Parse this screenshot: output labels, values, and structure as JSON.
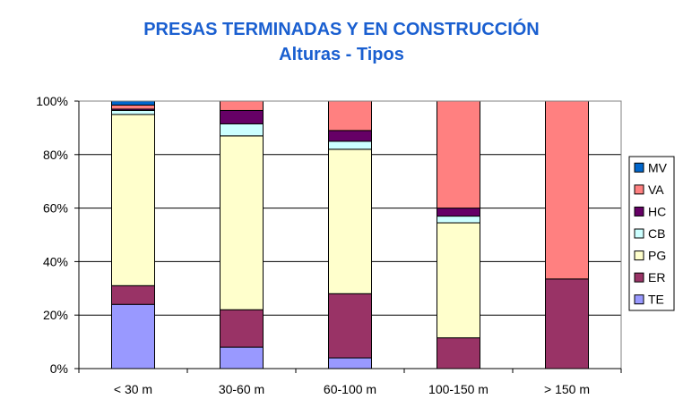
{
  "chart_data": {
    "type": "bar",
    "stacked": true,
    "percent": true,
    "title": "PRESAS TERMINADAS Y EN CONSTRUCCIÓN",
    "subtitle": "Alturas - Tipos",
    "categories": [
      "< 30 m",
      "30-60 m",
      "60-100 m",
      "100-150 m",
      "> 150 m"
    ],
    "y_ticks": [
      "0%",
      "20%",
      "40%",
      "60%",
      "80%",
      "100%"
    ],
    "ylim": [
      0,
      100
    ],
    "legend_position": "right",
    "series": [
      {
        "name": "TE",
        "color": "#9999ff",
        "values": [
          24,
          8,
          4,
          0,
          0
        ]
      },
      {
        "name": "ER",
        "color": "#993366",
        "values": [
          7,
          14,
          24,
          11.5,
          33.5
        ]
      },
      {
        "name": "PG",
        "color": "#ffffcc",
        "values": [
          64,
          65,
          54,
          43,
          0
        ]
      },
      {
        "name": "CB",
        "color": "#ccffff",
        "values": [
          1.5,
          4.5,
          3,
          2.5,
          0
        ]
      },
      {
        "name": "HC",
        "color": "#660066",
        "values": [
          0.5,
          5,
          4,
          3,
          0
        ]
      },
      {
        "name": "VA",
        "color": "#ff8080",
        "values": [
          1.5,
          3.5,
          11,
          40,
          66.5
        ]
      },
      {
        "name": "MV",
        "color": "#0066cc",
        "values": [
          1.5,
          0,
          0,
          0,
          0
        ]
      }
    ]
  }
}
